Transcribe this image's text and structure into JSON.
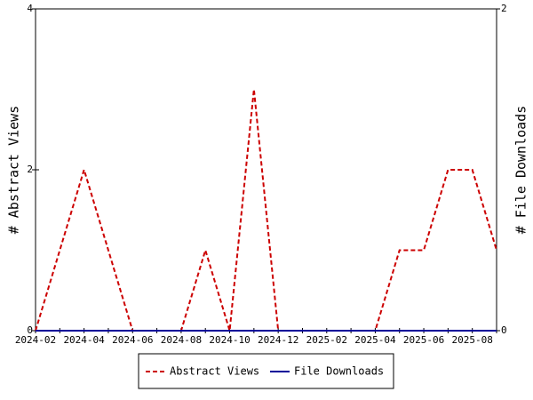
{
  "chart_data": {
    "type": "line",
    "categories": [
      "2024-02",
      null,
      "2024-04",
      null,
      "2024-06",
      null,
      "2024-08",
      null,
      "2024-10",
      null,
      "2024-12",
      null,
      "2025-02",
      null,
      "2025-04",
      null,
      "2025-06",
      null,
      "2025-08",
      null
    ],
    "y_label": "# Abstract Views",
    "y2_label": "# File Downloads",
    "series": [
      {
        "name": "Abstract Views",
        "color": "#cc0000",
        "dash": true,
        "values": [
          0,
          1,
          2,
          1,
          0,
          0,
          0,
          1,
          0,
          3,
          0,
          0,
          0,
          0,
          0,
          1,
          1,
          2,
          2,
          1
        ]
      },
      {
        "name": "File Downloads",
        "color": "#000099",
        "axis": "y2",
        "dash": false,
        "values": [
          0,
          0,
          0,
          0,
          0,
          0,
          0,
          0,
          0,
          0,
          0,
          0,
          0,
          0,
          0,
          0,
          0,
          0,
          0,
          0
        ]
      }
    ],
    "ylim": [
      0,
      4
    ],
    "yticks": [
      0,
      2,
      4
    ],
    "y2lim": [
      0,
      2
    ],
    "y2ticks": [
      0,
      2
    ],
    "legend": "bottom"
  }
}
